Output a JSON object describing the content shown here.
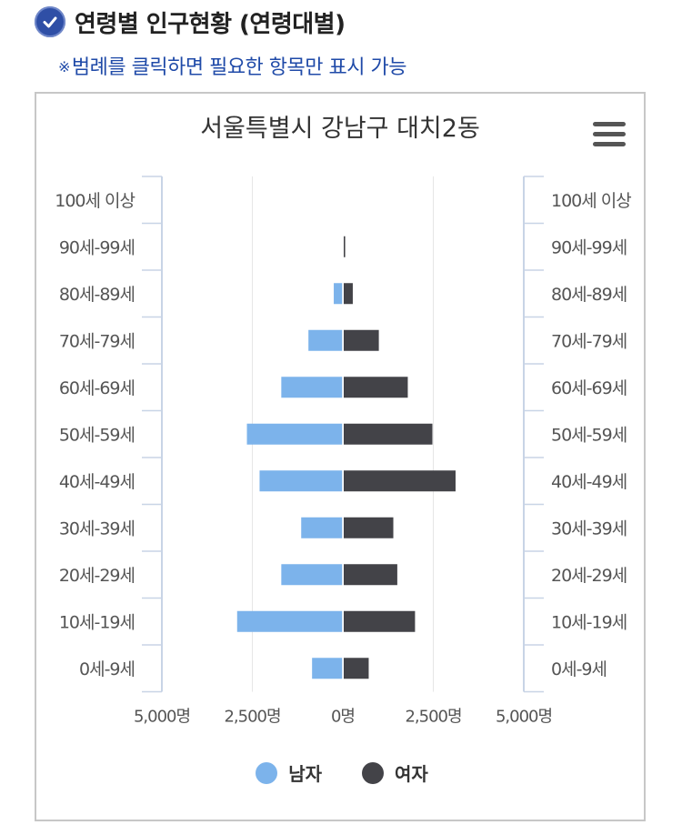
{
  "header": {
    "title": "연령별 인구현황 (연령대별)",
    "notice_mark": "※",
    "notice": "범례를 클릭하면 필요한 항목만 표시 가능"
  },
  "icons": {
    "header": "check-circle-icon",
    "menu": "hamburger-menu-icon"
  },
  "colors": {
    "male": "#7cb3eb",
    "female": "#434348",
    "axis": "#c8d4e6",
    "grid": "#e6e6e6"
  },
  "chart_data": {
    "type": "bar",
    "orientation": "horizontal-population-pyramid",
    "title": "서울특별시 강남구 대치2동",
    "categories": [
      "100세 이상",
      "90세-99세",
      "80세-89세",
      "70세-79세",
      "60세-69세",
      "50세-59세",
      "40세-49세",
      "30세-39세",
      "20세-29세",
      "10세-19세",
      "0세-9세"
    ],
    "series": [
      {
        "name": "남자",
        "values": [
          0,
          0,
          250,
          950,
          1700,
          2650,
          2300,
          1150,
          1700,
          2920,
          850
        ]
      },
      {
        "name": "여자",
        "values": [
          0,
          40,
          250,
          970,
          1770,
          2450,
          3090,
          1370,
          1480,
          1970,
          690
        ]
      }
    ],
    "xlim": [
      -5000,
      5000
    ],
    "x_tick_values": [
      -5000,
      -2500,
      0,
      2500,
      5000
    ],
    "x_tick_labels": [
      "5,000명",
      "2,500명",
      "0명",
      "2,500명",
      "5,000명"
    ],
    "legend_position": "bottom-center",
    "grid": true
  }
}
